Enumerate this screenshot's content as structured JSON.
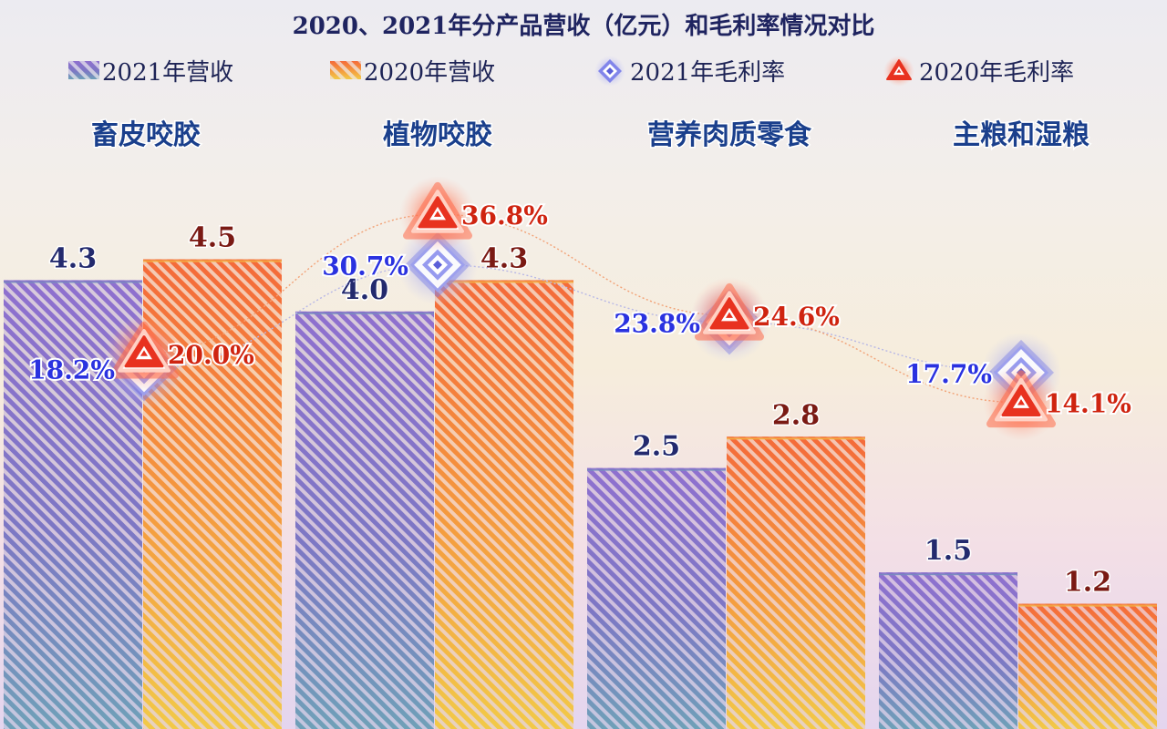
{
  "chart_data": {
    "type": "bar",
    "title": "2020、2021年分产品营收（亿元）和毛利率情况对比",
    "categories": [
      "畜皮咬胶",
      "植物咬胶",
      "营养肉质零食",
      "主粮和湿粮"
    ],
    "series": [
      {
        "name": "2021年营收",
        "kind": "bar",
        "values": [
          4.3,
          4.0,
          2.5,
          1.5
        ],
        "labels": [
          "4.3",
          "4.0",
          "2.5",
          "1.5"
        ],
        "color": "#6a6ccf"
      },
      {
        "name": "2020年营收",
        "kind": "bar",
        "values": [
          4.5,
          4.3,
          2.8,
          1.2
        ],
        "labels": [
          "4.5",
          "4.3",
          "2.8",
          "1.2"
        ],
        "color": "#f08a3c"
      },
      {
        "name": "2021年毛利率",
        "kind": "line",
        "marker": "diamond",
        "values": [
          18.2,
          30.7,
          23.8,
          17.7
        ],
        "labels": [
          "18.2%",
          "30.7%",
          "23.8%",
          "17.7%"
        ],
        "color": "#4a4ed8"
      },
      {
        "name": "2020年毛利率",
        "kind": "line",
        "marker": "triangle",
        "values": [
          20.0,
          36.8,
          24.6,
          14.1
        ],
        "labels": [
          "20.0%",
          "36.8%",
          "24.6%",
          "14.1%"
        ],
        "color": "#e0301e"
      }
    ],
    "bar_ylim": [
      0,
      5.5
    ],
    "rate_ylim": [
      0,
      50
    ],
    "grid": false,
    "legend_position": "top"
  }
}
